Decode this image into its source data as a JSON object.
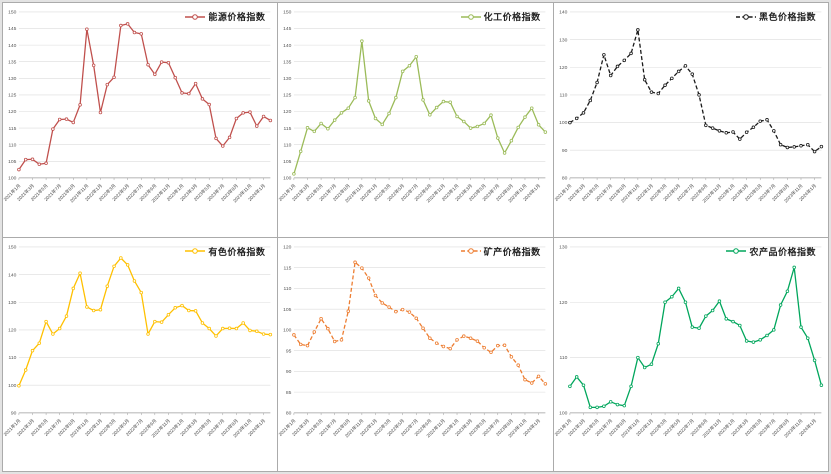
{
  "chart_data": [
    {
      "type": "line",
      "legend": "能源价格指数",
      "color": "#C0504D",
      "line_style": "solid",
      "marker": "open-circle",
      "ylim": [
        100,
        150
      ],
      "ystep": 5,
      "grid": true,
      "legend_position": "top-right",
      "x_frequency": "monthly",
      "tick_every": 2,
      "x_tick_labels": [
        "2021年1月",
        "2021年3月",
        "2021年5月",
        "2021年7月",
        "2021年9月",
        "2021年11月",
        "2022年1月",
        "2022年3月",
        "2022年5月",
        "2022年7月",
        "2022年9月",
        "2022年11月",
        "2023年1月",
        "2023年3月",
        "2023年5月",
        "2023年7月",
        "2023年9月",
        "2023年11月",
        "2024年1月"
      ],
      "values": [
        102.5,
        105.5,
        105.6,
        104.1,
        104.4,
        114.7,
        117.6,
        117.7,
        116.7,
        122.0,
        144.8,
        133.9,
        119.7,
        128.1,
        130.3,
        145.9,
        146.4,
        143.8,
        143.4,
        134.1,
        131.2,
        134.9,
        134.7,
        130.2,
        125.6,
        125.4,
        128.4,
        123.8,
        122.1,
        111.9,
        109.6,
        112.2,
        117.9,
        119.6,
        119.8,
        115.6,
        118.5,
        117.3
      ]
    },
    {
      "type": "line",
      "legend": "化工价格指数",
      "color": "#9BBB59",
      "line_style": "solid",
      "marker": "open-circle",
      "ylim": [
        100,
        150
      ],
      "ystep": 5,
      "grid": true,
      "legend_position": "top-right",
      "x_frequency": "monthly",
      "tick_every": 2,
      "x_tick_labels": [
        "2021年1月",
        "2021年3月",
        "2021年5月",
        "2021年7月",
        "2021年9月",
        "2021年11月",
        "2022年1月",
        "2022年3月",
        "2022年5月",
        "2022年7月",
        "2022年9月",
        "2022年11月",
        "2023年1月",
        "2023年3月",
        "2023年5月",
        "2023年7月",
        "2023年9月",
        "2023年11月",
        "2024年1月"
      ],
      "values": [
        101.2,
        108.0,
        115.1,
        114.0,
        116.4,
        114.8,
        117.4,
        119.6,
        121.0,
        124.2,
        141.2,
        123.2,
        117.9,
        116.1,
        119.4,
        124.2,
        132.1,
        133.8,
        136.5,
        123.5,
        119.0,
        121.2,
        123.0,
        122.8,
        118.5,
        117.0,
        115.0,
        115.5,
        116.4,
        118.9,
        112.0,
        107.5,
        111.2,
        115.2,
        118.3,
        121.0,
        116.0,
        113.8
      ]
    },
    {
      "type": "line",
      "legend": "黑色价格指数",
      "color": "#1a1a1a",
      "line_style": "dashed",
      "marker": "open-circle",
      "ylim": [
        80,
        140
      ],
      "ystep": 10,
      "grid": true,
      "legend_position": "top-right",
      "x_frequency": "monthly",
      "tick_every": 2,
      "x_tick_labels": [
        "2021年1月",
        "2021年3月",
        "2021年5月",
        "2021年7月",
        "2021年9月",
        "2021年11月",
        "2022年1月",
        "2022年3月",
        "2022年5月",
        "2022年7月",
        "2022年9月",
        "2022年11月",
        "2023年1月",
        "2023年3月",
        "2023年5月",
        "2023年7月",
        "2023年9月",
        "2023年11月",
        "2024年1月"
      ],
      "values": [
        100.0,
        101.5,
        103.5,
        108.0,
        114.5,
        124.5,
        117.0,
        120.3,
        122.5,
        125.0,
        133.5,
        115.5,
        111.0,
        110.5,
        113.5,
        116.0,
        118.5,
        120.5,
        117.5,
        110.0,
        99.0,
        98.0,
        97.0,
        96.3,
        96.6,
        94.0,
        96.5,
        98.3,
        100.5,
        101.0,
        97.0,
        92.0,
        91.0,
        91.2,
        91.6,
        92.0,
        89.5,
        91.3
      ]
    },
    {
      "type": "line",
      "legend": "有色价格指数",
      "color": "#FFC000",
      "line_style": "solid",
      "marker": "open-circle",
      "ylim": [
        90,
        150
      ],
      "ystep": 10,
      "grid": true,
      "legend_position": "top-right",
      "x_frequency": "monthly",
      "tick_every": 2,
      "x_tick_labels": [
        "2021年1月",
        "2021年3月",
        "2021年5月",
        "2021年7月",
        "2021年9月",
        "2021年11月",
        "2022年1月",
        "2022年3月",
        "2022年5月",
        "2022年7月",
        "2022年9月",
        "2022年11月",
        "2023年1月",
        "2023年3月",
        "2023年5月",
        "2023年7月",
        "2023年9月",
        "2023年11月",
        "2024年1月"
      ],
      "values": [
        99.8,
        105.5,
        112.5,
        115.2,
        123.0,
        118.5,
        120.5,
        125.0,
        135.0,
        140.5,
        128.3,
        127.0,
        127.3,
        135.8,
        143.0,
        146.0,
        143.5,
        137.7,
        133.5,
        118.5,
        123.0,
        122.8,
        125.5,
        128.0,
        128.8,
        127.0,
        126.9,
        122.5,
        120.5,
        117.8,
        120.5,
        120.6,
        120.5,
        122.5,
        119.8,
        119.5,
        118.5,
        118.3
      ]
    },
    {
      "type": "line",
      "legend": "矿产价格指数",
      "color": "#ED7D31",
      "line_style": "dashed",
      "marker": "open-circle",
      "ylim": [
        80,
        120
      ],
      "ystep": 5,
      "grid": true,
      "legend_position": "top-right",
      "x_frequency": "monthly",
      "tick_every": 2,
      "x_tick_labels": [
        "2021年1月",
        "2021年3月",
        "2021年5月",
        "2021年7月",
        "2021年9月",
        "2021年11月",
        "2022年1月",
        "2022年3月",
        "2022年5月",
        "2022年7月",
        "2022年9月",
        "2022年11月",
        "2023年1月",
        "2023年3月",
        "2023年5月",
        "2023年7月",
        "2023年9月",
        "2023年11月",
        "2024年1月"
      ],
      "values": [
        98.8,
        96.5,
        96.2,
        99.5,
        102.7,
        100.3,
        97.2,
        97.6,
        104.5,
        116.3,
        114.9,
        112.5,
        108.3,
        106.5,
        105.5,
        104.4,
        104.9,
        104.3,
        102.8,
        100.4,
        98.0,
        96.8,
        96.0,
        95.5,
        97.6,
        98.5,
        98.0,
        97.3,
        95.7,
        94.6,
        96.2,
        96.3,
        93.5,
        91.5,
        88.0,
        87.2,
        88.8,
        87.0
      ]
    },
    {
      "type": "line",
      "legend": "农产品价格指数",
      "color": "#00A65C",
      "line_style": "solid",
      "marker": "open-circle",
      "ylim": [
        100,
        130
      ],
      "ystep": 10,
      "grid": true,
      "legend_position": "top-right",
      "x_frequency": "monthly",
      "tick_every": 2,
      "x_tick_labels": [
        "2021年1月",
        "2021年3月",
        "2021年5月",
        "2021年7月",
        "2021年9月",
        "2021年11月",
        "2022年1月",
        "2022年3月",
        "2022年5月",
        "2022年7月",
        "2022年9月",
        "2022年11月",
        "2023年1月",
        "2023年3月",
        "2023年5月",
        "2023年7月",
        "2023年9月",
        "2023年11月",
        "2024年1月"
      ],
      "values": [
        104.8,
        106.5,
        105.0,
        101.0,
        101.0,
        101.2,
        102.0,
        101.5,
        101.3,
        104.8,
        110.0,
        108.2,
        108.8,
        112.5,
        120.0,
        121.0,
        122.5,
        120.0,
        115.5,
        115.3,
        117.5,
        118.5,
        120.2,
        117.0,
        116.5,
        115.8,
        113.0,
        112.8,
        113.2,
        114.0,
        115.0,
        119.5,
        122.0,
        126.3,
        115.5,
        113.5,
        109.5,
        105.0
      ]
    }
  ]
}
